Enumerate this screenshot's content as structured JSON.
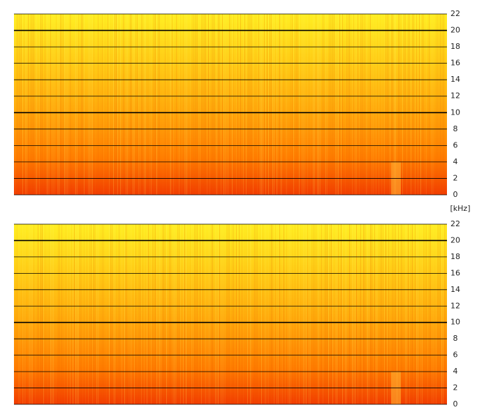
{
  "chart_data": [
    {
      "type": "spectrogram",
      "ylim": [
        0,
        22
      ],
      "yticks": [
        0,
        2,
        4,
        6,
        8,
        10,
        12,
        14,
        16,
        18,
        20,
        22
      ],
      "major_gridlines": [
        10,
        20
      ],
      "ylabel": "[kHz]"
    },
    {
      "type": "spectrogram",
      "ylim": [
        0,
        22
      ],
      "yticks": [
        0,
        2,
        4,
        6,
        8,
        10,
        12,
        14,
        16,
        18,
        20,
        22
      ],
      "major_gridlines": [
        10,
        20
      ]
    }
  ]
}
